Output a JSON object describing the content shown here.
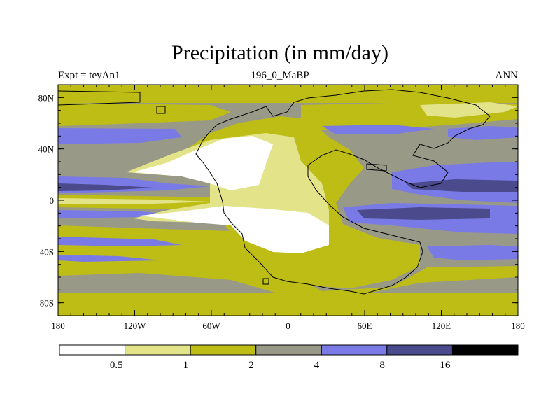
{
  "title": "Precipitation (in mm/day)",
  "subtitle_left": "Expt = teyAn1",
  "subtitle_center": "196_0_MaBP",
  "subtitle_right": "ANN",
  "x_ticks": [
    "180",
    "120W",
    "60W",
    "0",
    "60E",
    "120E",
    "180"
  ],
  "y_ticks": [
    "80N",
    "40N",
    "0",
    "40S",
    "80S"
  ],
  "colorbar": {
    "labels": [
      "0.5",
      "1",
      "2",
      "4",
      "8",
      "16"
    ],
    "colors": [
      "#ffffff",
      "#e3e38a",
      "#bdbd16",
      "#999987",
      "#7a7ae6",
      "#4a4a8c",
      "#000000"
    ]
  },
  "palette": {
    "land_dry": "#ffffff",
    "lt_yellow": "#e3e38a",
    "olive": "#bdbd16",
    "gray": "#999987",
    "blue": "#7a7ae6",
    "navy": "#4a4a8c"
  }
}
